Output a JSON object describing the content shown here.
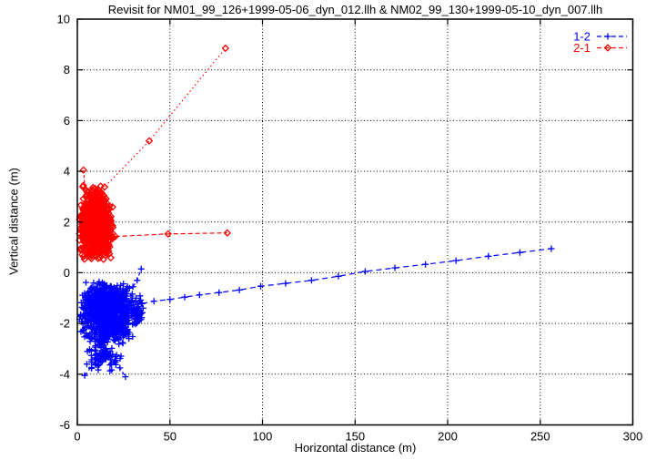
{
  "chart_data": {
    "type": "scatter",
    "title": "Revisit for NM01_99_126+1999-05-06_dyn_012.llh & NM02_99_130+1999-05-10_dyn_007.llh",
    "xlabel": "Horizontal distance (m)",
    "ylabel": "Vertical distance (m)",
    "xlim": [
      0,
      300
    ],
    "ylim": [
      -6,
      10
    ],
    "xticks": [
      0,
      50,
      100,
      150,
      200,
      250,
      300
    ],
    "yticks": [
      -6,
      -4,
      -2,
      0,
      2,
      4,
      6,
      8,
      10
    ],
    "grid": true,
    "legend_position": "top-right",
    "series": [
      {
        "name": "2-1",
        "color": "#ff0000",
        "marker": "diamond",
        "line_style": "dashed",
        "clusters": [
          {
            "desc": "dense revisit cloud",
            "center": [
              10,
              1.75
            ],
            "half_width": 9.5,
            "half_height": 1.25,
            "count": 900
          },
          {
            "desc": "upper fringe",
            "center": [
              9,
              3.0
            ],
            "half_width": 6.5,
            "half_height": 0.5,
            "count": 70
          }
        ],
        "paths": [
          {
            "desc": "isolated upper-left point",
            "dash": "3 2.5",
            "points": [
              [
                3.3,
                4.05
              ],
              [
                4.2,
                3.3
              ]
            ]
          },
          {
            "desc": "rising excursion",
            "dash": "1.5 3",
            "points": [
              [
                13.8,
                2.45
              ],
              [
                14.7,
                3.38
              ],
              [
                38.8,
                5.2
              ],
              [
                80,
                8.85
              ]
            ]
          },
          {
            "desc": "horizontal excursion",
            "dash": "5 3",
            "points": [
              [
                20.5,
                1.43
              ],
              [
                49,
                1.53
              ],
              [
                81,
                1.57
              ]
            ]
          }
        ]
      },
      {
        "name": "1-2",
        "color": "#0000ff",
        "marker": "plus",
        "line_style": "dashed",
        "clusters": [
          {
            "desc": "dense revisit cloud",
            "center": [
              16,
              -1.6
            ],
            "half_width": 15,
            "half_height": 1.3,
            "count": 1000
          },
          {
            "desc": "right fringe",
            "center": [
              32.5,
              -1.5
            ],
            "half_width": 4,
            "half_height": 0.7,
            "count": 50
          },
          {
            "desc": "lower fringe",
            "center": [
              13,
              -3.2
            ],
            "half_width": 11,
            "half_height": 0.75,
            "count": 90
          }
        ],
        "paths": [
          {
            "desc": "upper spur",
            "dash": "4 3",
            "points": [
              [
                30,
                -0.55
              ],
              [
                32.3,
                -0.3
              ],
              [
                34.5,
                0.15
              ]
            ]
          },
          {
            "desc": "lower spur",
            "dash": "4 3",
            "points": [
              [
                4,
                -4.05
              ],
              [
                12,
                -3.3
              ],
              [
                16,
                -3.15
              ],
              [
                20,
                -3.5
              ],
              [
                23,
                -3.75
              ],
              [
                26,
                -4.1
              ]
            ]
          },
          {
            "desc": "long drift track",
            "dash": "6 4",
            "points": [
              [
                35,
                -1.22
              ],
              [
                41.4,
                -1.12
              ],
              [
                50,
                -1.05
              ],
              [
                58,
                -0.96
              ],
              [
                66,
                -0.87
              ],
              [
                76.5,
                -0.78
              ],
              [
                87.5,
                -0.68
              ],
              [
                99,
                -0.53
              ],
              [
                112.5,
                -0.42
              ],
              [
                126.5,
                -0.3
              ],
              [
                141,
                -0.14
              ],
              [
                155.5,
                0.05
              ],
              [
                171.5,
                0.19
              ],
              [
                188,
                0.33
              ],
              [
                204.5,
                0.48
              ],
              [
                222,
                0.65
              ],
              [
                239,
                0.8
              ],
              [
                256,
                0.95
              ]
            ]
          }
        ]
      }
    ],
    "legend": [
      {
        "label": "1-2",
        "color": "#0000ff",
        "marker": "plus"
      },
      {
        "label": "2-1",
        "color": "#ff0000",
        "marker": "diamond"
      }
    ]
  },
  "colors": {
    "background": "#ffffff",
    "axis": "#000000",
    "series_1_2": "#0000ff",
    "series_2_1": "#ff0000"
  }
}
